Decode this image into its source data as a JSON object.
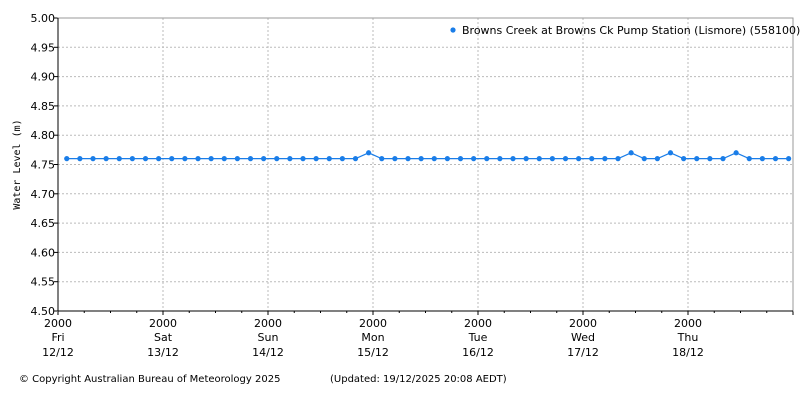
{
  "chart_data": {
    "type": "line",
    "title": "",
    "xlabel": "",
    "ylabel": "Water Level (m)",
    "ylim": [
      4.5,
      5.0
    ],
    "yticks": [
      "5.00",
      "4.95",
      "4.90",
      "4.85",
      "4.80",
      "4.75",
      "4.70",
      "4.65",
      "4.60",
      "4.55",
      "4.50"
    ],
    "xticks": [
      {
        "time": "2000",
        "day": "Fri",
        "date": "12/12"
      },
      {
        "time": "2000",
        "day": "Sat",
        "date": "13/12"
      },
      {
        "time": "2000",
        "day": "Sun",
        "date": "14/12"
      },
      {
        "time": "2000",
        "day": "Mon",
        "date": "15/12"
      },
      {
        "time": "2000",
        "day": "Tue",
        "date": "16/12"
      },
      {
        "time": "2000",
        "day": "Wed",
        "date": "17/12"
      },
      {
        "time": "2000",
        "day": "Thu",
        "date": "18/12"
      }
    ],
    "xlim": [
      "12/12 20:00",
      "19/12 20:00"
    ],
    "grid": true,
    "legend_position": "top-right",
    "series_color": "#1a7de8",
    "series": [
      {
        "name": "Browns Creek at Browns Ck Pump Station (Lismore) (558100)",
        "x": [
          "12/12 22:00",
          "13/12 01:00",
          "13/12 04:00",
          "13/12 07:00",
          "13/12 10:00",
          "13/12 13:00",
          "13/12 16:00",
          "13/12 19:00",
          "13/12 22:00",
          "14/12 01:00",
          "14/12 04:00",
          "14/12 07:00",
          "14/12 10:00",
          "14/12 13:00",
          "14/12 16:00",
          "14/12 19:00",
          "14/12 22:00",
          "15/12 01:00",
          "15/12 04:00",
          "15/12 07:00",
          "15/12 10:00",
          "15/12 13:00",
          "15/12 16:00",
          "15/12 19:00",
          "15/12 22:00",
          "16/12 01:00",
          "16/12 04:00",
          "16/12 07:00",
          "16/12 10:00",
          "16/12 13:00",
          "16/12 16:00",
          "16/12 19:00",
          "16/12 22:00",
          "17/12 01:00",
          "17/12 04:00",
          "17/12 07:00",
          "17/12 10:00",
          "17/12 13:00",
          "17/12 16:00",
          "17/12 19:00",
          "17/12 22:00",
          "18/12 01:00",
          "18/12 04:00",
          "18/12 07:00",
          "18/12 10:00",
          "18/12 13:00",
          "18/12 16:00",
          "18/12 19:00",
          "18/12 22:00",
          "19/12 01:00",
          "19/12 04:00",
          "19/12 07:00",
          "19/12 10:00",
          "19/12 13:00",
          "19/12 16:00",
          "19/12 19:00"
        ],
        "values": [
          4.76,
          4.76,
          4.76,
          4.76,
          4.76,
          4.76,
          4.76,
          4.76,
          4.76,
          4.76,
          4.76,
          4.76,
          4.76,
          4.76,
          4.76,
          4.76,
          4.76,
          4.76,
          4.76,
          4.76,
          4.76,
          4.76,
          4.76,
          4.77,
          4.76,
          4.76,
          4.76,
          4.76,
          4.76,
          4.76,
          4.76,
          4.76,
          4.76,
          4.76,
          4.76,
          4.76,
          4.76,
          4.76,
          4.76,
          4.76,
          4.76,
          4.76,
          4.76,
          4.77,
          4.76,
          4.76,
          4.77,
          4.76,
          4.76,
          4.76,
          4.76,
          4.77,
          4.76,
          4.76,
          4.76,
          4.76
        ]
      }
    ]
  },
  "footer": {
    "copyright": "© Copyright Australian Bureau of Meteorology 2025",
    "updated": "(Updated: 19/12/2025 20:08 AEDT)"
  }
}
